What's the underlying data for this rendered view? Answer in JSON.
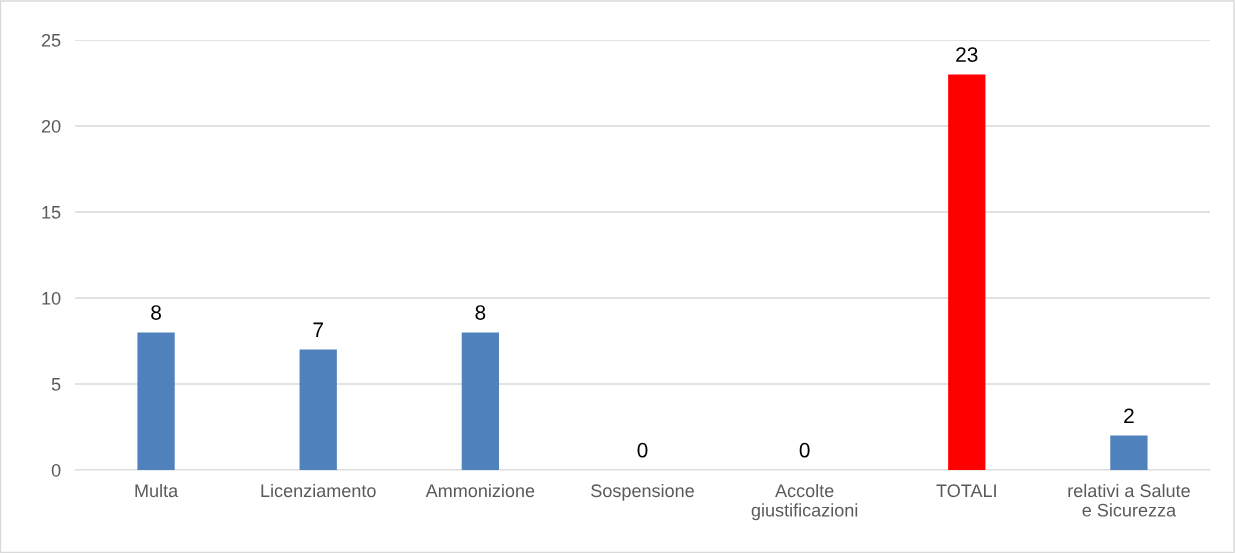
{
  "chart_data": {
    "type": "bar",
    "categories": [
      "Multa",
      "Licenziamento",
      "Ammonizione",
      "Sospensione",
      "Accolte\ngiustificazioni",
      "TOTALI",
      "relativi a Salute\ne Sicurezza"
    ],
    "values": [
      8,
      7,
      8,
      0,
      0,
      23,
      2
    ],
    "colors": [
      "#4f81bd",
      "#4f81bd",
      "#4f81bd",
      "#4f81bd",
      "#4f81bd",
      "#ff0000",
      "#4f81bd"
    ],
    "ylim": [
      0,
      25
    ],
    "yticks": [
      0,
      5,
      10,
      15,
      20,
      25
    ],
    "grid": "y",
    "data_labels": true,
    "legend": false
  }
}
